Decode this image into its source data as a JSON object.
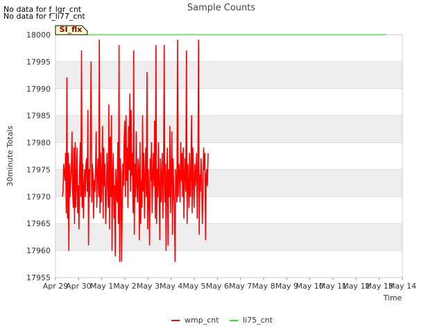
{
  "notices": [
    "No data for f_lgr_cnt",
    "No data for f_li77_cnt"
  ],
  "site_tag": "SI_flx",
  "colors": {
    "wmp": "#ff0000",
    "li75": "#33dd33",
    "band": "#eeeeee",
    "grid": "#dddddd",
    "tag_bg": "#ffffcc"
  },
  "chart_data": {
    "type": "line",
    "title": "Sample Counts",
    "xlabel": "Time",
    "ylabel": "30minute Totals",
    "ylim": [
      17955,
      18000
    ],
    "yticks": [
      17955,
      17960,
      17965,
      17970,
      17975,
      17980,
      17985,
      17990,
      17995,
      18000
    ],
    "xlim_days": [
      0,
      15
    ],
    "xtick_labels": [
      "Apr 29",
      "Apr 30",
      "May 1",
      "May 2",
      "May 3",
      "May 4",
      "May 5",
      "May 6",
      "May 7",
      "May 8",
      "May 9",
      "May 10",
      "May 11",
      "May 12",
      "May 13",
      "May 14"
    ],
    "series": [
      {
        "name": "wmp_cnt",
        "color": "#ff0000",
        "x_start_days": 0.3,
        "step_days": 0.0275,
        "values": [
          17970,
          17971,
          17976,
          17974,
          17973,
          17978,
          17967,
          17992,
          17966,
          17978,
          17960,
          17976,
          17970,
          17973,
          17975,
          17982,
          17971,
          17968,
          17979,
          17965,
          17980,
          17968,
          17973,
          17979,
          17967,
          17972,
          17964,
          17975,
          17980,
          17970,
          17997,
          17968,
          17976,
          17966,
          17972,
          17975,
          17970,
          17976,
          17977,
          17971,
          17986,
          17961,
          17975,
          17970,
          17980,
          17995,
          17969,
          17976,
          17974,
          17966,
          17973,
          17971,
          17975,
          17982,
          17968,
          17974,
          17977,
          17970,
          17999,
          17967,
          17978,
          17969,
          17973,
          17983,
          17966,
          17979,
          17972,
          17976,
          17965,
          17969,
          17978,
          17973,
          17968,
          17987,
          17964,
          17981,
          17970,
          17985,
          17960,
          17974,
          17978,
          17966,
          17972,
          17959,
          17975,
          17971,
          17969,
          17980,
          17965,
          17998,
          17958,
          17977,
          17974,
          17958,
          17969,
          17976,
          17972,
          17980,
          17984,
          17970,
          17985,
          17973,
          17979,
          17968,
          17983,
          17975,
          17989,
          17971,
          17986,
          17974,
          17978,
          17967,
          17997,
          17963,
          17976,
          17970,
          17982,
          17972,
          17969,
          17977,
          17975,
          17962,
          17980,
          17965,
          17973,
          17968,
          17985,
          17971,
          17978,
          17966,
          17974,
          17979,
          17970,
          17993,
          17964,
          17975,
          17969,
          17961,
          17977,
          17973,
          17980,
          17967,
          17974,
          17978,
          17972,
          17984,
          17966,
          17998,
          17965,
          17975,
          17970,
          17980,
          17973,
          17962,
          17977,
          17969,
          17974,
          17978,
          17966,
          17972,
          17998,
          17969,
          17976,
          17960,
          17973,
          17979,
          17961,
          17975,
          17970,
          17983,
          17967,
          17974,
          17982,
          17963,
          17977,
          17971,
          17968,
          17958,
          17975,
          17972,
          17969,
          17999,
          17970,
          17976,
          17974,
          17969,
          17980,
          17973,
          17978,
          17970,
          17979,
          17966,
          17974,
          17977,
          17971,
          17997,
          17965,
          17976,
          17972,
          17968,
          17978,
          17970,
          17974,
          17985,
          17967,
          17979,
          17973,
          17968,
          17976,
          17972,
          17974,
          17978,
          17966,
          17975,
          17999,
          17963,
          17974,
          17971,
          17977,
          17973,
          17965,
          17970,
          17979,
          17975,
          17978,
          17962,
          17974,
          17975,
          17972,
          17978
        ]
      },
      {
        "name": "li75_cnt",
        "color": "#33dd33",
        "x_start_days": 0.95,
        "x_end_days": 14.3,
        "values": [
          18000,
          18000
        ]
      }
    ],
    "legend": {
      "placement": "bottom-center",
      "entries": [
        "wmp_cnt",
        "li75_cnt"
      ]
    }
  }
}
